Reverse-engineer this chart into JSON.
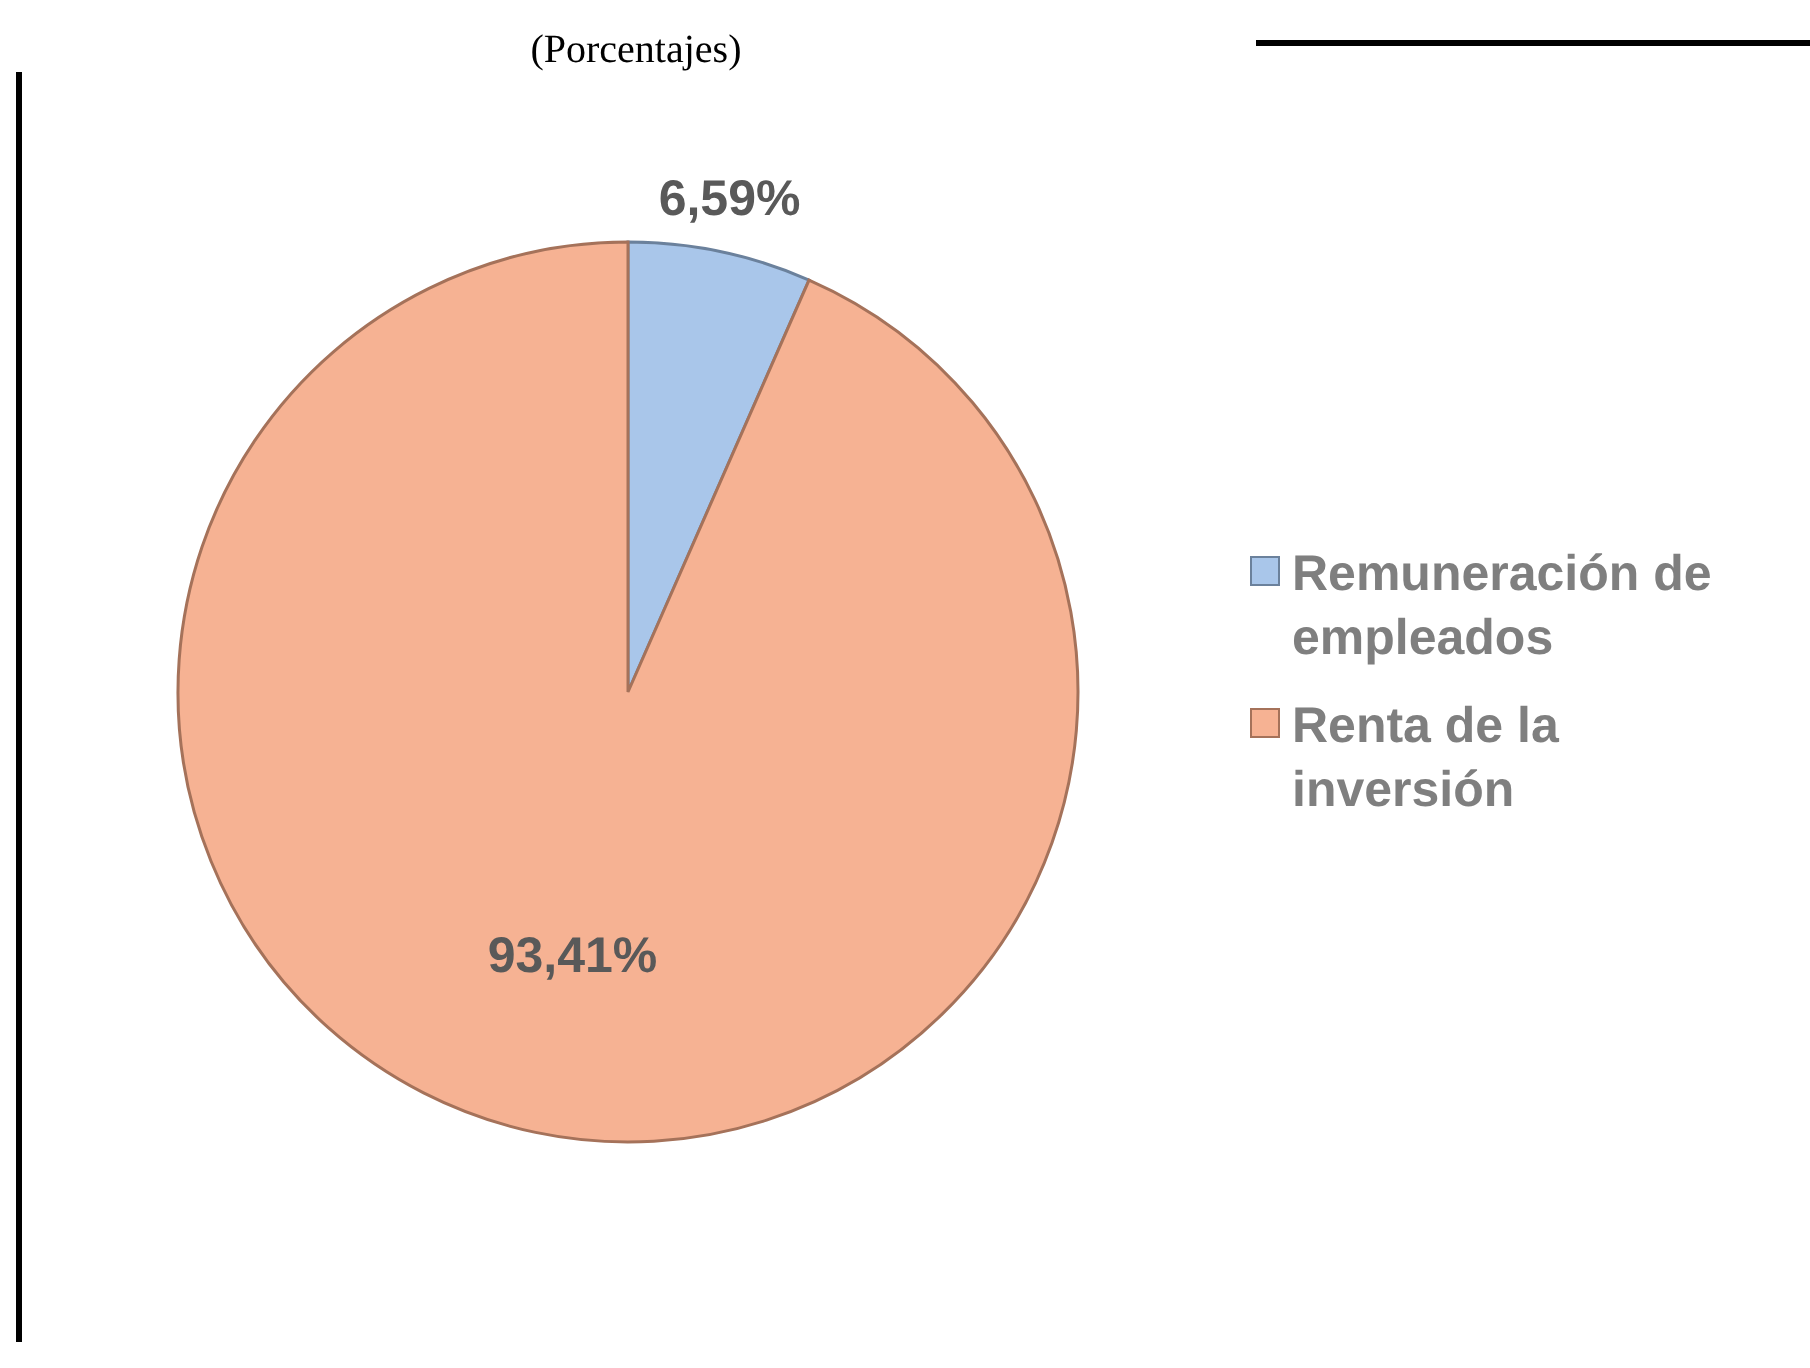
{
  "chart_data": {
    "type": "pie",
    "title": "(Porcentajes)",
    "categories": [
      "Remuneración de empleados",
      "Renta de la inversión"
    ],
    "values": [
      6.59,
      93.41
    ],
    "colors": [
      "#a9c6ea",
      "#f6b293"
    ],
    "value_labels": [
      "6,59%",
      "93,41%"
    ],
    "legend": "right"
  }
}
